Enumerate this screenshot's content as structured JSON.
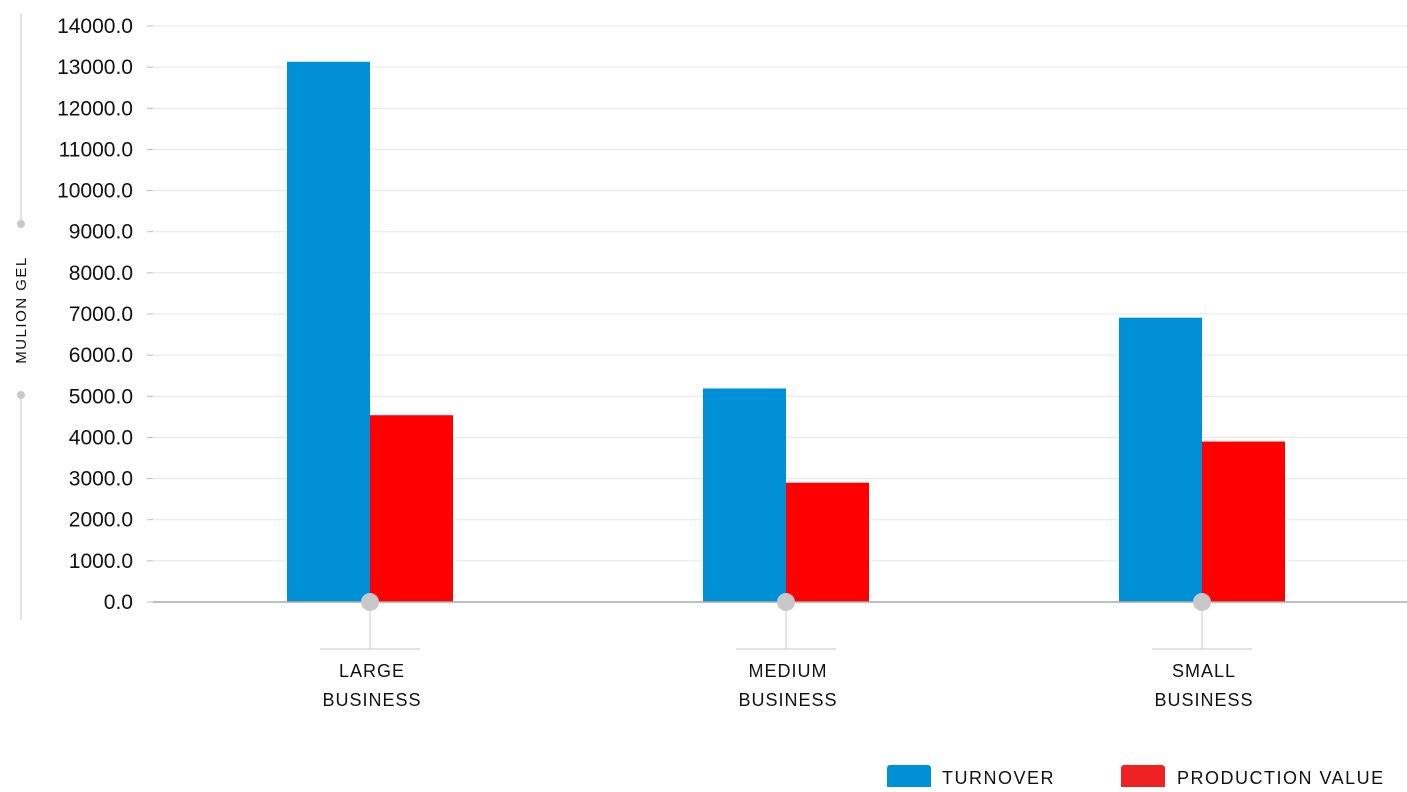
{
  "chart_data": {
    "type": "bar",
    "title": "",
    "xlabel": "",
    "ylabel": "MULION GEL",
    "categories": [
      [
        "LARGE",
        "BUSINESS"
      ],
      [
        "MEDIUM",
        "BUSINESS"
      ],
      [
        "SMALL",
        "BUSINESS"
      ]
    ],
    "series": [
      {
        "name": "TURNOVER",
        "color": "#0090d5",
        "values": [
          13130,
          5190,
          6910
        ]
      },
      {
        "name": "PRODUCTION VALUE",
        "color": "#ff0000",
        "values": [
          4540,
          2900,
          3900
        ]
      }
    ],
    "ylim": [
      0,
      14000
    ],
    "yticks": [
      0,
      1000,
      2000,
      3000,
      4000,
      5000,
      6000,
      7000,
      8000,
      9000,
      10000,
      11000,
      12000,
      13000,
      14000
    ],
    "ytick_format": "0.0",
    "grid": true,
    "legend_position": "bottom-right",
    "legend_colors": {
      "TURNOVER": "#0090d5",
      "PRODUCTION VALUE": "#ee2222"
    }
  }
}
